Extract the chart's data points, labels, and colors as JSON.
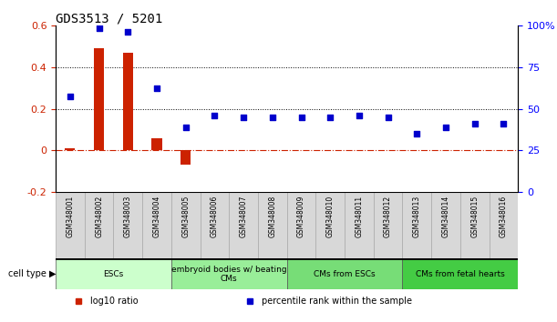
{
  "title": "GDS3513 / 5201",
  "samples": [
    "GSM348001",
    "GSM348002",
    "GSM348003",
    "GSM348004",
    "GSM348005",
    "GSM348006",
    "GSM348007",
    "GSM348008",
    "GSM348009",
    "GSM348010",
    "GSM348011",
    "GSM348012",
    "GSM348013",
    "GSM348014",
    "GSM348015",
    "GSM348016"
  ],
  "log10_ratio": [
    0.01,
    0.49,
    0.47,
    0.06,
    -0.07,
    0.0,
    0.0,
    0.0,
    0.0,
    0.0,
    0.0,
    0.0,
    0.0,
    0.0,
    0.0,
    0.0
  ],
  "percentile_rank_left_scale": [
    0.26,
    0.59,
    0.57,
    0.3,
    0.11,
    0.17,
    0.16,
    0.16,
    0.16,
    0.16,
    0.17,
    0.16,
    0.08,
    0.11,
    0.13,
    0.13
  ],
  "ylim_left": [
    -0.2,
    0.6
  ],
  "yticks_left": [
    -0.2,
    0.0,
    0.2,
    0.4,
    0.6
  ],
  "ytick_labels_left": [
    "-0.2",
    "0",
    "0.2",
    "0.4",
    "0.6"
  ],
  "ytick_labels_right": [
    "0",
    "25",
    "50",
    "75",
    "100%"
  ],
  "yticks_right_positions": [
    -0.2,
    0.0,
    0.2,
    0.4,
    0.6
  ],
  "hlines": [
    0.2,
    0.4
  ],
  "bar_color": "#cc2200",
  "scatter_color": "#0000cc",
  "zero_line_color": "#cc2200",
  "cell_groups": [
    {
      "label": "ESCs",
      "start": 0,
      "end": 3,
      "color": "#ccffcc"
    },
    {
      "label": "embryoid bodies w/ beating\nCMs",
      "start": 4,
      "end": 7,
      "color": "#99ee99"
    },
    {
      "label": "CMs from ESCs",
      "start": 8,
      "end": 11,
      "color": "#77dd77"
    },
    {
      "label": "CMs from fetal hearts",
      "start": 12,
      "end": 15,
      "color": "#44cc44"
    }
  ],
  "cell_type_label": "cell type",
  "legend_items": [
    {
      "label": "log10 ratio",
      "color": "#cc2200"
    },
    {
      "label": "percentile rank within the sample",
      "color": "#0000cc"
    }
  ],
  "bg_color": "#ffffff",
  "sample_box_color": "#d8d8d8",
  "sample_text_color": "#000000"
}
